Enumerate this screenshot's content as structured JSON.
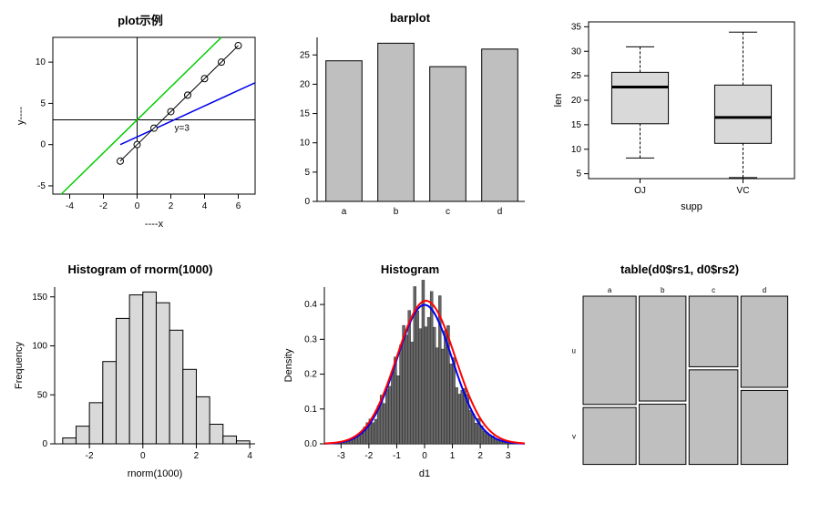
{
  "background_color": "#ffffff",
  "axis_color": "#000000",
  "tick_fontsize": 10,
  "title_fontsize": 13,
  "label_fontsize": 11,
  "plot1": {
    "type": "line-scatter",
    "title": "plot示例",
    "xlabel": "----x",
    "ylabel": "y----",
    "xlim": [
      -5,
      7
    ],
    "ylim": [
      -6,
      13
    ],
    "xticks": [
      -4,
      -2,
      0,
      2,
      4,
      6
    ],
    "yticks": [
      -5,
      0,
      5,
      10
    ],
    "points_x": [
      -1,
      0,
      1,
      2,
      3,
      4,
      5,
      6
    ],
    "points_y": [
      -2,
      0,
      2,
      4,
      6,
      8,
      10,
      12
    ],
    "point_marker": "circle-open",
    "point_color": "#000000",
    "line_color": "#000000",
    "ref_hline_y": 3,
    "ref_hline_label": "y=3",
    "ref_vline_x": 0,
    "diag_line_color": "#00cc00",
    "extra_line_color": "#0000ee",
    "box_color": "#000000"
  },
  "barplot": {
    "type": "bar",
    "title": "barplot",
    "categories": [
      "a",
      "b",
      "c",
      "d"
    ],
    "values": [
      24,
      27,
      23,
      26
    ],
    "ylim": [
      0,
      28
    ],
    "yticks": [
      0,
      5,
      10,
      15,
      20,
      25
    ],
    "bar_color": "#bfbfbf",
    "bar_border": "#000000",
    "bar_width": 0.8
  },
  "boxplot": {
    "type": "boxplot",
    "title": "",
    "xlabel": "supp",
    "ylabel": "len",
    "categories": [
      "OJ",
      "VC"
    ],
    "ylim": [
      4,
      36
    ],
    "yticks": [
      5,
      10,
      15,
      20,
      25,
      30,
      35
    ],
    "boxes": [
      {
        "min": 8.2,
        "q1": 15.2,
        "median": 22.7,
        "q3": 25.7,
        "max": 30.9
      },
      {
        "min": 4.2,
        "q1": 11.2,
        "median": 16.5,
        "q3": 23.1,
        "max": 33.9
      }
    ],
    "box_fill": "#d9d9d9",
    "box_border": "#000000",
    "median_width": 3
  },
  "hist1": {
    "type": "histogram",
    "title": "Histogram of rnorm(1000)",
    "xlabel": "rnorm(1000)",
    "ylabel": "Frequency",
    "xlim": [
      -3.3,
      4.2
    ],
    "ylim": [
      0,
      160
    ],
    "xticks": [
      -2,
      0,
      2,
      4
    ],
    "yticks": [
      0,
      50,
      100,
      150
    ],
    "breaks": [
      -3.0,
      -2.5,
      -2.0,
      -1.5,
      -1.0,
      -0.5,
      0.0,
      0.5,
      1.0,
      1.5,
      2.0,
      2.5,
      3.0,
      3.5,
      4.0
    ],
    "counts": [
      6,
      18,
      42,
      84,
      128,
      152,
      155,
      144,
      116,
      76,
      48,
      20,
      8,
      3
    ],
    "bar_fill": "#d9d9d9",
    "bar_border": "#000000"
  },
  "hist2": {
    "type": "histogram-density",
    "title": "Histogram",
    "xlabel": "d1",
    "ylabel": "Density",
    "xlim": [
      -3.6,
      3.6
    ],
    "ylim": [
      0,
      0.45
    ],
    "xticks": [
      -3,
      -2,
      -1,
      0,
      1,
      2,
      3
    ],
    "yticks": [
      0.0,
      0.1,
      0.2,
      0.3,
      0.4
    ],
    "breaks_step": 0.1,
    "breaks_start": -3.5,
    "breaks_end": 3.5,
    "bar_fill": "#666666",
    "bar_border": "#000000",
    "density_curve_color": "#ff0000",
    "normal_curve_color": "#0000ee",
    "curve_width": 2
  },
  "mosaic": {
    "type": "mosaic",
    "title": "table(d0$rs1, d0$rs2)",
    "col_labels": [
      "a",
      "b",
      "c",
      "d"
    ],
    "row_labels": [
      "u",
      "v"
    ],
    "col_widths": [
      0.27,
      0.24,
      0.25,
      0.24
    ],
    "row_splits": [
      [
        0.65,
        0.35
      ],
      [
        0.63,
        0.37
      ],
      [
        0.43,
        0.57
      ],
      [
        0.55,
        0.45
      ]
    ],
    "cell_fill": "#bfbfbf",
    "cell_border": "#000000",
    "gap": 0.015,
    "label_fontsize": 8
  }
}
